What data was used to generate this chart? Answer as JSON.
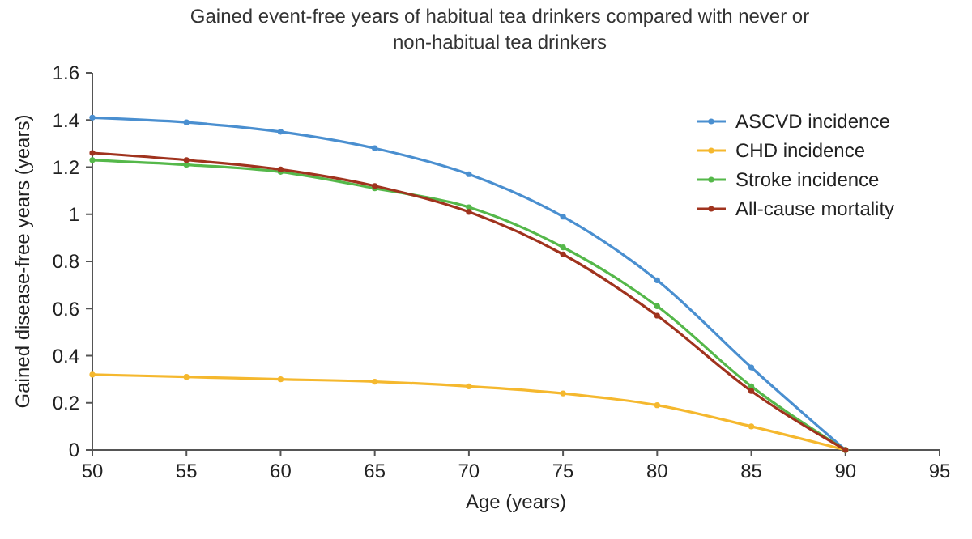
{
  "chart_data": {
    "type": "line",
    "title": "Gained event-free years of habitual tea drinkers compared with never or\nnon-habitual tea drinkers",
    "xlabel": "Age (years)",
    "ylabel": "Gained disease-free years (years)",
    "x": [
      50,
      55,
      60,
      65,
      70,
      75,
      80,
      85,
      90
    ],
    "series": [
      {
        "name": "ASCVD incidence",
        "color": "#4a8fd0",
        "values": [
          1.41,
          1.39,
          1.35,
          1.28,
          1.17,
          0.99,
          0.72,
          0.35,
          0
        ]
      },
      {
        "name": "CHD incidence",
        "color": "#f5b82e",
        "values": [
          0.32,
          0.31,
          0.3,
          0.29,
          0.27,
          0.24,
          0.19,
          0.1,
          0
        ]
      },
      {
        "name": "Stroke incidence",
        "color": "#55b84a",
        "values": [
          1.23,
          1.21,
          1.18,
          1.11,
          1.03,
          0.86,
          0.61,
          0.27,
          0
        ]
      },
      {
        "name": "All-cause mortality",
        "color": "#a0331e",
        "values": [
          1.26,
          1.23,
          1.19,
          1.12,
          1.01,
          0.83,
          0.57,
          0.25,
          0
        ]
      }
    ],
    "xlim": [
      50,
      95
    ],
    "xticks": [
      50,
      55,
      60,
      65,
      70,
      75,
      80,
      85,
      90,
      95
    ],
    "ylim": [
      0,
      1.6
    ],
    "yticks": [
      0,
      {
        "value": 0.2,
        "label": "0.2"
      },
      {
        "value": 0.4,
        "label": "0.4"
      },
      {
        "value": 0.6,
        "label": "0.6"
      },
      {
        "value": 0.8,
        "label": "0.8"
      },
      1,
      {
        "value": 1.2,
        "label": "1.2"
      },
      {
        "value": 1.4,
        "label": "1.4"
      },
      {
        "value": 1.6,
        "label": "1.6"
      }
    ],
    "grid": false,
    "legend": "top right",
    "marker": "circle",
    "line_style": "solid"
  }
}
